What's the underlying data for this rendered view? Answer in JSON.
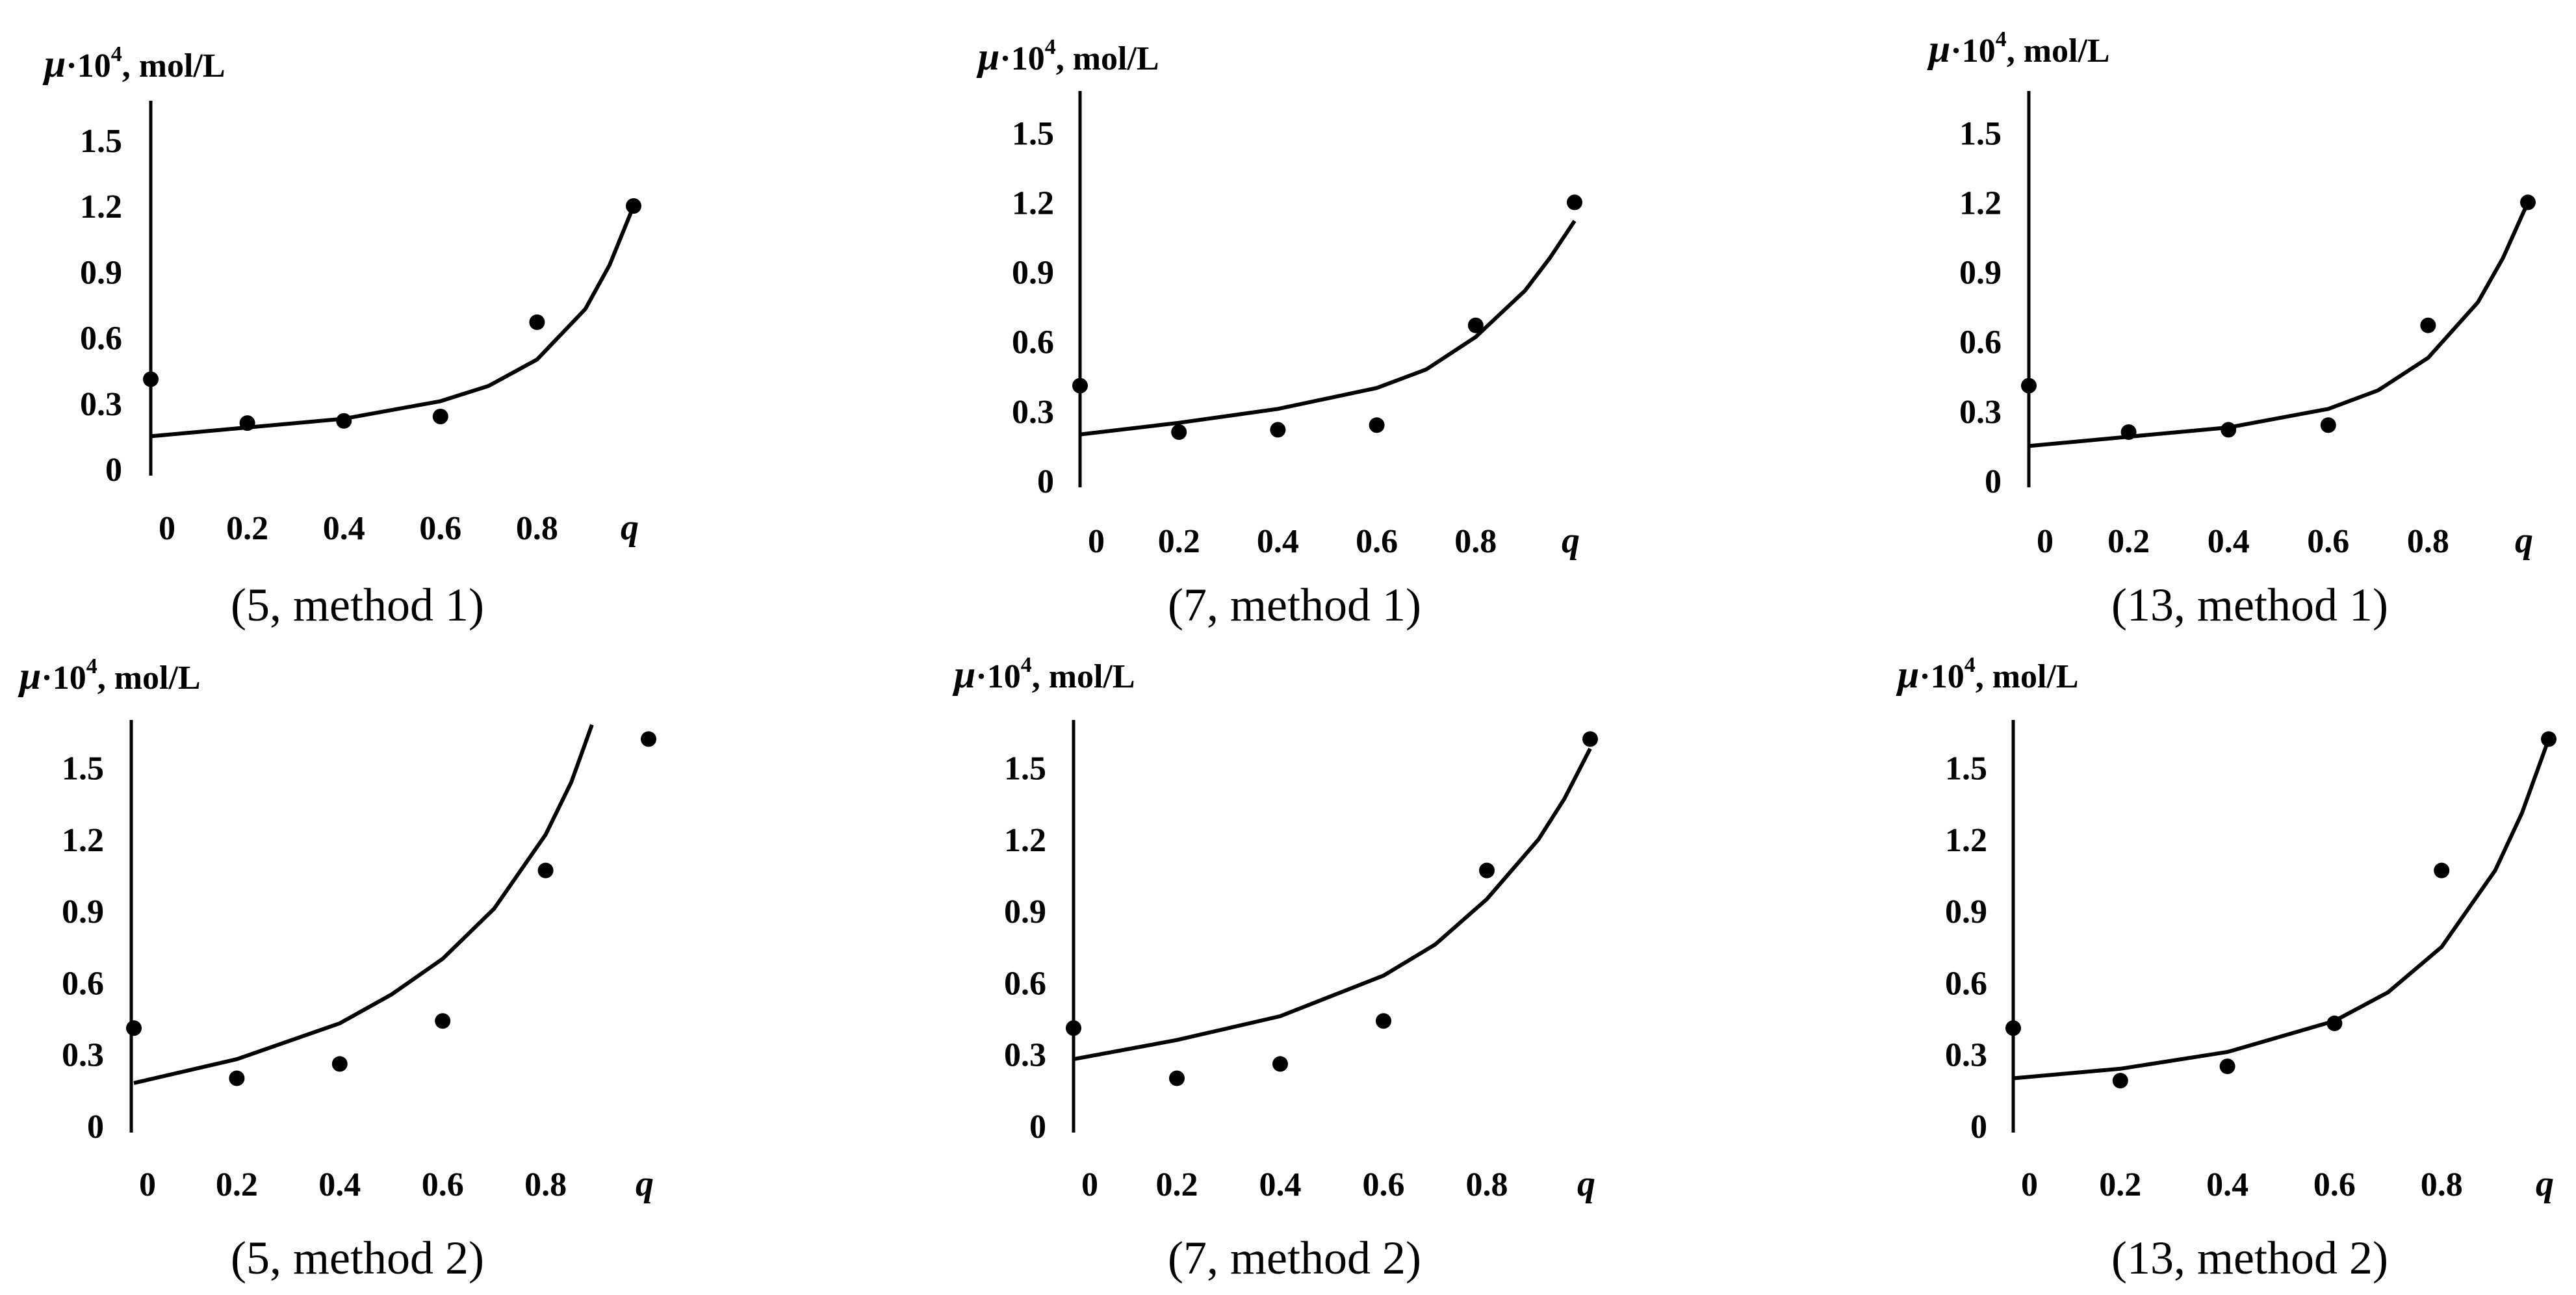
{
  "chart_data": [
    {
      "type": "scatter",
      "caption": "(5, method 1)",
      "ylabel_symbol": "μ",
      "ylabel_mid": "·10",
      "ylabel_exp": "4",
      "ylabel_units": ", mol/L",
      "xlabel": "q",
      "x_ticks": [
        "0",
        "0.2",
        "0.4",
        "0.6",
        "0.8"
      ],
      "y_ticks": [
        "0",
        "0.3",
        "0.6",
        "0.9",
        "1.2",
        "1.5"
      ],
      "xlim": [
        0,
        1.0
      ],
      "ylim": [
        0,
        1.68
      ],
      "points": {
        "x": [
          0.0,
          0.2,
          0.4,
          0.6,
          0.8,
          1.0
        ],
        "y": [
          0.41,
          0.21,
          0.22,
          0.24,
          0.67,
          1.2
        ]
      },
      "curve": {
        "x": [
          0.0,
          0.2,
          0.4,
          0.6,
          0.7,
          0.8,
          0.9,
          0.95,
          1.0
        ],
        "y": [
          0.15,
          0.19,
          0.23,
          0.31,
          0.38,
          0.5,
          0.73,
          0.93,
          1.2
        ]
      }
    },
    {
      "type": "scatter",
      "caption": "(7, method 1)",
      "ylabel_symbol": "μ",
      "ylabel_mid": "·10",
      "ylabel_exp": "4",
      "ylabel_units": ", mol/L",
      "xlabel": "q",
      "x_ticks": [
        "0",
        "0.2",
        "0.4",
        "0.6",
        "0.8"
      ],
      "y_ticks": [
        "0",
        "0.3",
        "0.6",
        "0.9",
        "1.2",
        "1.5"
      ],
      "xlim": [
        0,
        1.0
      ],
      "ylim": [
        0,
        1.68
      ],
      "points": {
        "x": [
          0.0,
          0.2,
          0.4,
          0.6,
          0.8,
          1.0
        ],
        "y": [
          0.41,
          0.21,
          0.22,
          0.24,
          0.67,
          1.2
        ]
      },
      "curve": {
        "x": [
          0.0,
          0.2,
          0.4,
          0.6,
          0.7,
          0.8,
          0.9,
          0.95,
          1.0
        ],
        "y": [
          0.2,
          0.25,
          0.31,
          0.4,
          0.48,
          0.62,
          0.82,
          0.96,
          1.12
        ]
      }
    },
    {
      "type": "scatter",
      "caption": "(13, method 1)",
      "ylabel_symbol": "μ",
      "ylabel_mid": "·10",
      "ylabel_exp": "4",
      "ylabel_units": ", mol/L",
      "xlabel": "q",
      "x_ticks": [
        "0",
        "0.2",
        "0.4",
        "0.6",
        "0.8"
      ],
      "y_ticks": [
        "0",
        "0.3",
        "0.6",
        "0.9",
        "1.2",
        "1.5"
      ],
      "xlim": [
        0,
        1.0
      ],
      "ylim": [
        0,
        1.68
      ],
      "points": {
        "x": [
          0.0,
          0.2,
          0.4,
          0.6,
          0.8,
          1.0
        ],
        "y": [
          0.41,
          0.21,
          0.22,
          0.24,
          0.67,
          1.2
        ]
      },
      "curve": {
        "x": [
          0.0,
          0.2,
          0.4,
          0.6,
          0.7,
          0.8,
          0.9,
          0.95,
          1.0
        ],
        "y": [
          0.15,
          0.19,
          0.23,
          0.31,
          0.39,
          0.53,
          0.77,
          0.96,
          1.2
        ]
      }
    },
    {
      "type": "scatter",
      "caption": "(5, method 2)",
      "ylabel_symbol": "μ",
      "ylabel_mid": "·10",
      "ylabel_exp": "4",
      "ylabel_units": ", mol/L",
      "xlabel": "q",
      "x_ticks": [
        "0",
        "0.2",
        "0.4",
        "0.6",
        "0.8"
      ],
      "y_ticks": [
        "0",
        "0.3",
        "0.6",
        "0.9",
        "1.2",
        "1.5"
      ],
      "xlim": [
        0,
        1.0
      ],
      "ylim": [
        0,
        1.7
      ],
      "points": {
        "x": [
          0.0,
          0.2,
          0.4,
          0.6,
          0.8,
          1.0
        ],
        "y": [
          0.41,
          0.2,
          0.26,
          0.44,
          1.07,
          1.62
        ]
      },
      "curve": {
        "x": [
          0.0,
          0.2,
          0.4,
          0.5,
          0.6,
          0.7,
          0.8,
          0.85,
          0.89
        ],
        "y": [
          0.18,
          0.28,
          0.43,
          0.55,
          0.7,
          0.91,
          1.22,
          1.44,
          1.68
        ]
      }
    },
    {
      "type": "scatter",
      "caption": "(7, method 2)",
      "ylabel_symbol": "μ",
      "ylabel_mid": "·10",
      "ylabel_exp": "4",
      "ylabel_units": ", mol/L",
      "xlabel": "q",
      "x_ticks": [
        "0",
        "0.2",
        "0.4",
        "0.6",
        "0.8"
      ],
      "y_ticks": [
        "0",
        "0.3",
        "0.6",
        "0.9",
        "1.2",
        "1.5"
      ],
      "xlim": [
        0,
        1.0
      ],
      "ylim": [
        0,
        1.7
      ],
      "points": {
        "x": [
          0.0,
          0.2,
          0.4,
          0.6,
          0.8,
          1.0
        ],
        "y": [
          0.41,
          0.2,
          0.26,
          0.44,
          1.07,
          1.62
        ]
      },
      "curve": {
        "x": [
          0.0,
          0.2,
          0.4,
          0.6,
          0.7,
          0.8,
          0.9,
          0.95,
          1.0
        ],
        "y": [
          0.28,
          0.36,
          0.46,
          0.63,
          0.76,
          0.95,
          1.2,
          1.37,
          1.58
        ]
      }
    },
    {
      "type": "scatter",
      "caption": "(13, method 2)",
      "ylabel_symbol": "μ",
      "ylabel_mid": "·10",
      "ylabel_exp": "4",
      "ylabel_units": ", mol/L",
      "xlabel": "q",
      "x_ticks": [
        "0",
        "0.2",
        "0.4",
        "0.6",
        "0.8"
      ],
      "y_ticks": [
        "0",
        "0.3",
        "0.6",
        "0.9",
        "1.2",
        "1.5"
      ],
      "xlim": [
        0,
        1.0
      ],
      "ylim": [
        0,
        1.7
      ],
      "points": {
        "x": [
          0.0,
          0.2,
          0.4,
          0.6,
          0.8,
          1.0
        ],
        "y": [
          0.41,
          0.19,
          0.25,
          0.43,
          1.07,
          1.62
        ]
      },
      "curve": {
        "x": [
          0.0,
          0.2,
          0.4,
          0.6,
          0.7,
          0.8,
          0.9,
          0.95,
          1.0
        ],
        "y": [
          0.2,
          0.24,
          0.31,
          0.44,
          0.56,
          0.75,
          1.07,
          1.31,
          1.62
        ]
      }
    }
  ]
}
